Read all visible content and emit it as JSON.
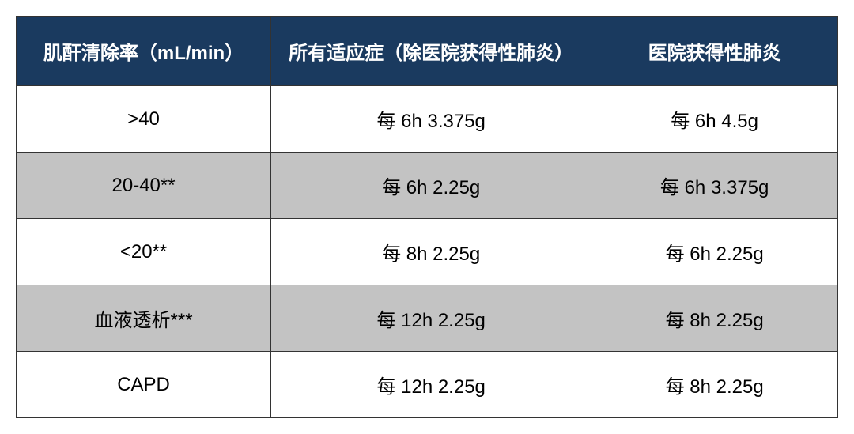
{
  "table": {
    "type": "table",
    "header_bg_color": "#1a3a5f",
    "header_text_color": "#ffffff",
    "row_bg_color": "#ffffff",
    "alt_row_bg_color": "#c3c3c3",
    "border_color": "#333333",
    "text_color": "#000000",
    "header_fontsize": 24,
    "cell_fontsize": 24,
    "columns": [
      {
        "label": "肌酐清除率（mL/min）",
        "width": "31%",
        "align": "center"
      },
      {
        "label": "所有适应症（除医院获得性肺炎）",
        "width": "39%",
        "align": "center"
      },
      {
        "label": "医院获得性肺炎",
        "width": "30%",
        "align": "center"
      }
    ],
    "rows": [
      {
        "alt": false,
        "cells": [
          ">40",
          "每 6h 3.375g",
          "每 6h 4.5g"
        ]
      },
      {
        "alt": true,
        "cells": [
          "20-40**",
          "每 6h 2.25g",
          "每 6h 3.375g"
        ]
      },
      {
        "alt": false,
        "cells": [
          "<20**",
          "每 8h 2.25g",
          "每 6h 2.25g"
        ]
      },
      {
        "alt": true,
        "cells": [
          "血液透析***",
          "每 12h 2.25g",
          "每 8h 2.25g"
        ]
      },
      {
        "alt": false,
        "cells": [
          "CAPD",
          "每 12h 2.25g",
          "每 8h 2.25g"
        ]
      }
    ]
  }
}
